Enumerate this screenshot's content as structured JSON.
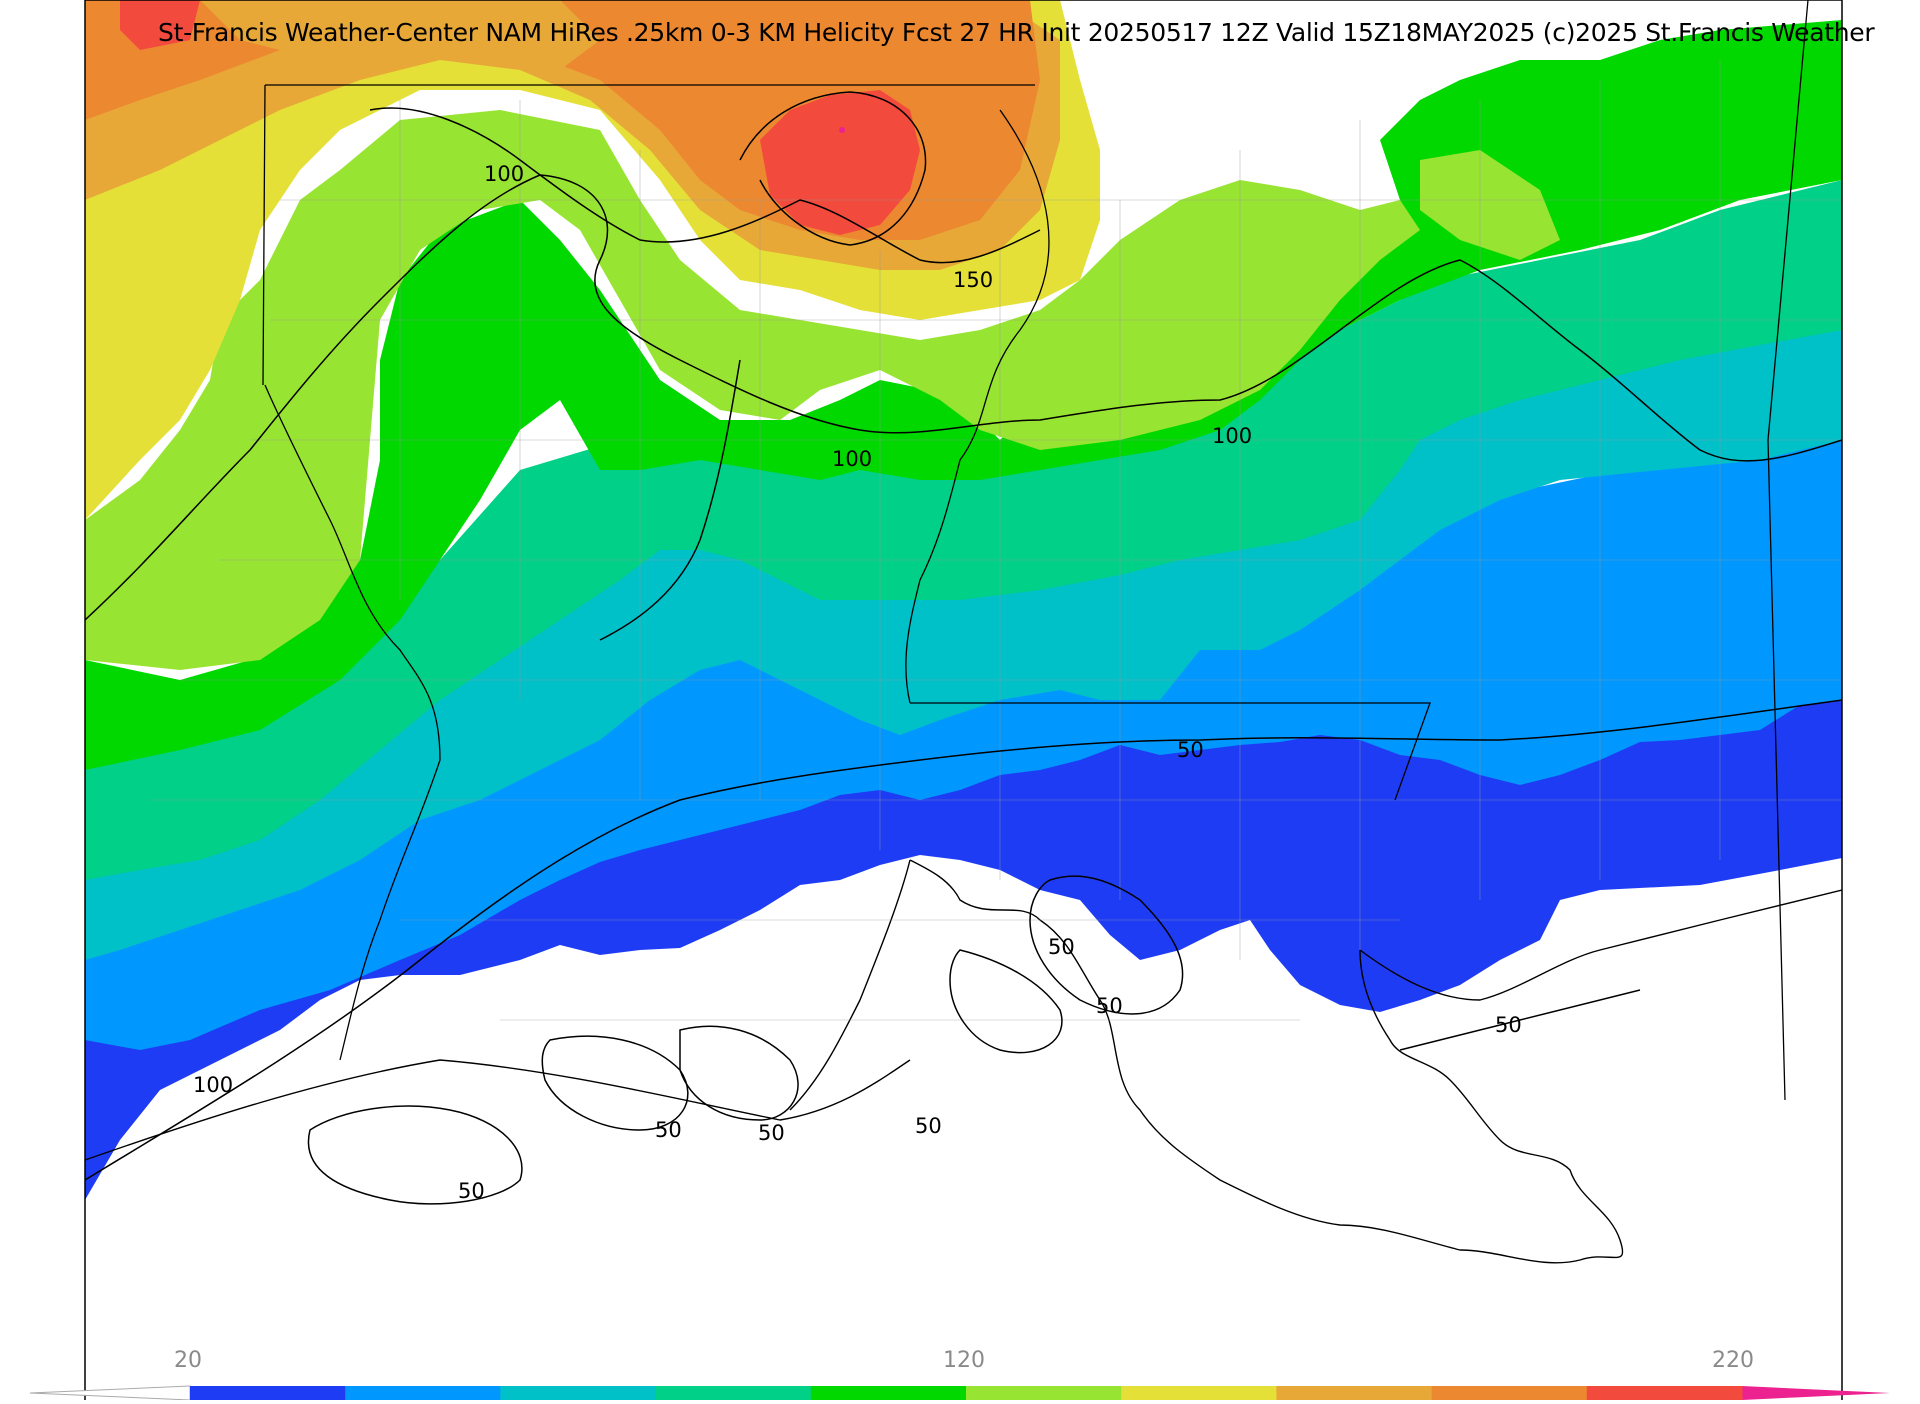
{
  "title": "St-Francis Weather-Center NAM HiRes .25km 0-3 KM Helicity Fcst 27 HR Init 20250517 12Z  Valid 15Z18MAY2025    (c)2025 St.Francis Weather",
  "colorbar": {
    "tick_labels": [
      "20",
      "120",
      "220"
    ],
    "colors": [
      "#1f3cf5",
      "#0098ff",
      "#00c0c8",
      "#00d088",
      "#00d800",
      "#98e432",
      "#e4e038",
      "#e8a838",
      "#ec8830",
      "#f24a3c",
      "#ec2290"
    ]
  },
  "contour_labels": [
    "100",
    "150",
    "100",
    "100",
    "50",
    "50",
    "50",
    "50",
    "100",
    "50",
    "50",
    "50",
    "50"
  ]
}
